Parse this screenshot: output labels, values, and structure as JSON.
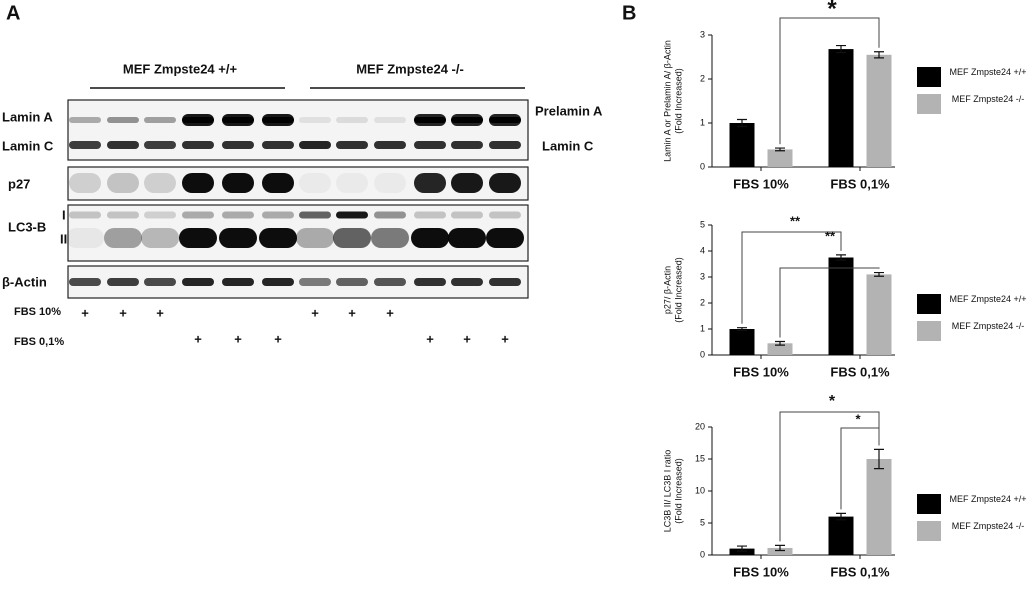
{
  "panel_a": "A",
  "panel_b": "B",
  "blot": {
    "group_labels": [
      "MEF Zmpste24 +/+",
      "MEF Zmpste24 -/-"
    ],
    "row_labels_left": [
      "Lamin A",
      "Lamin C",
      "p27",
      "LC3-B",
      "I",
      "II",
      "β-Actin"
    ],
    "row_labels_right": [
      "Prelamin A",
      "Lamin C"
    ],
    "fbs_rows": [
      {
        "label": "FBS 10%",
        "marks": [
          "+",
          "+",
          "+",
          null,
          null,
          null,
          "+",
          "+",
          "+",
          null,
          null,
          null
        ]
      },
      {
        "label": "FBS 0,1%",
        "marks": [
          null,
          null,
          null,
          "+",
          "+",
          "+",
          null,
          null,
          null,
          "+",
          "+",
          "+"
        ]
      }
    ]
  },
  "chart_data": [
    {
      "type": "bar",
      "ylabel": [
        "Lamin A or Prelamin A/ β-Actin",
        "(Fold Increased)"
      ],
      "categories": [
        "FBS 10%",
        "FBS 0,1%"
      ],
      "series": [
        {
          "name": "MEF Zmpste24 +/+",
          "color": "#000000",
          "values": [
            1.0,
            2.68
          ],
          "errors": [
            0.08,
            0.08
          ]
        },
        {
          "name": "MEF Zmpste24 -/-",
          "color": "#b3b3b3",
          "values": [
            0.4,
            2.55
          ],
          "errors": [
            0.03,
            0.07
          ]
        }
      ],
      "ylim": [
        0,
        3
      ],
      "yticks": [
        0,
        1,
        2,
        3
      ],
      "annotations": [
        "*"
      ]
    },
    {
      "type": "bar",
      "ylabel": [
        "p27/ β-Actin",
        "(Fold Increased)"
      ],
      "categories": [
        "FBS 10%",
        "FBS 0,1%"
      ],
      "series": [
        {
          "name": "MEF Zmpste24 +/+",
          "color": "#000000",
          "values": [
            1.0,
            3.75
          ],
          "errors": [
            0.05,
            0.1
          ]
        },
        {
          "name": "MEF Zmpste24 -/-",
          "color": "#b3b3b3",
          "values": [
            0.45,
            3.1
          ],
          "errors": [
            0.07,
            0.07
          ]
        }
      ],
      "ylim": [
        0,
        5
      ],
      "yticks": [
        0,
        1,
        2,
        3,
        4,
        5
      ],
      "annotations": [
        "**",
        "**"
      ]
    },
    {
      "type": "bar",
      "ylabel": [
        "LC3B II/ LC3B I ratio",
        "(Fold Increased)"
      ],
      "categories": [
        "FBS 10%",
        "FBS 0,1%"
      ],
      "series": [
        {
          "name": "MEF Zmpste24 +/+",
          "color": "#000000",
          "values": [
            1.0,
            6.0
          ],
          "errors": [
            0.4,
            0.5
          ]
        },
        {
          "name": "MEF Zmpste24 -/-",
          "color": "#b3b3b3",
          "values": [
            1.1,
            15.0
          ],
          "errors": [
            0.4,
            1.5
          ]
        }
      ],
      "ylim": [
        0,
        20
      ],
      "yticks": [
        0,
        5,
        10,
        15,
        20
      ],
      "annotations": [
        "*",
        "*"
      ]
    }
  ]
}
